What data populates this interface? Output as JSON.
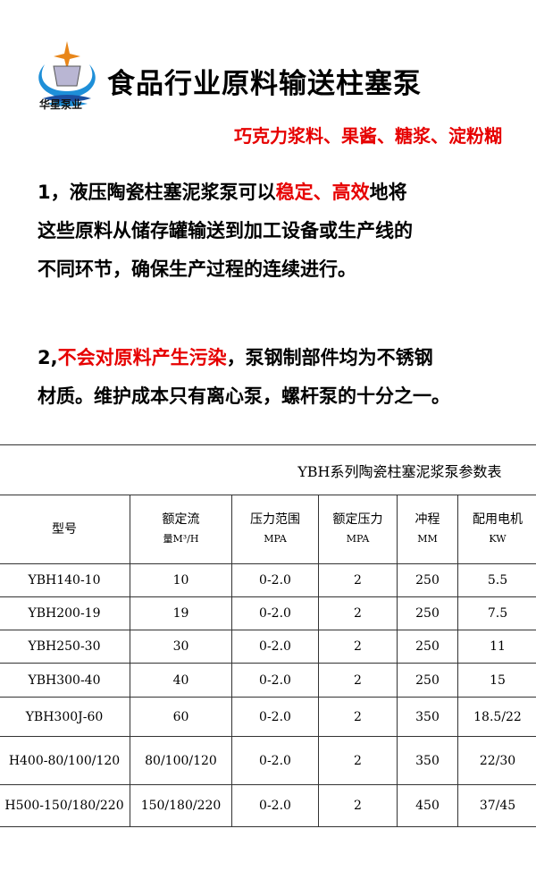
{
  "brand": "华星泵业",
  "title": "食品行业原料输送柱塞泵",
  "subtitle": "巧克力浆料、果酱、糖浆、淀粉糊",
  "p1": {
    "a": "1，液压陶瓷柱塞泥浆泵可以",
    "b": "稳定、高效",
    "c": "地将",
    "line2": "这些原料从储存罐输送到加工设备或生产线的",
    "line3": "不同环节，确保生产过程的连续进行。"
  },
  "p2": {
    "a": "2,",
    "b": "不会对原料产生污染",
    "c": "，泵钢制部件均为不锈钢",
    "line2": "材质。维护成本只有离心泵，螺杆泵的十分之一。"
  },
  "table": {
    "caption": "YBH系列陶瓷柱塞泥浆泵参数表",
    "headers": [
      [
        "型号",
        ""
      ],
      [
        "额定流",
        "量M³/H"
      ],
      [
        "压力范围",
        "MPA"
      ],
      [
        "额定压力",
        "MPA"
      ],
      [
        "冲程",
        "MM"
      ],
      [
        "配用电机",
        "KW"
      ]
    ],
    "rows": [
      [
        "YBH140-10",
        "10",
        "0-2.0",
        "2",
        "250",
        "5.5"
      ],
      [
        "YBH200-19",
        "19",
        "0-2.0",
        "2",
        "250",
        "7.5"
      ],
      [
        "YBH250-30",
        "30",
        "0-2.0",
        "2",
        "250",
        "11"
      ],
      [
        "YBH300-40",
        "40",
        "0-2.0",
        "2",
        "250",
        "15"
      ],
      [
        "YBH300J-60",
        "60",
        "0-2.0",
        "2",
        "350",
        "18.5/22"
      ],
      [
        "H400-80/100/120",
        "80/100/120",
        "0-2.0",
        "2",
        "350",
        "22/30"
      ],
      [
        "H500-150/180/220",
        "150/180/220",
        "0-2.0",
        "2",
        "450",
        "37/45"
      ]
    ]
  },
  "colors": {
    "accent": "#e60000",
    "logo_blue": "#1e8fd8"
  }
}
